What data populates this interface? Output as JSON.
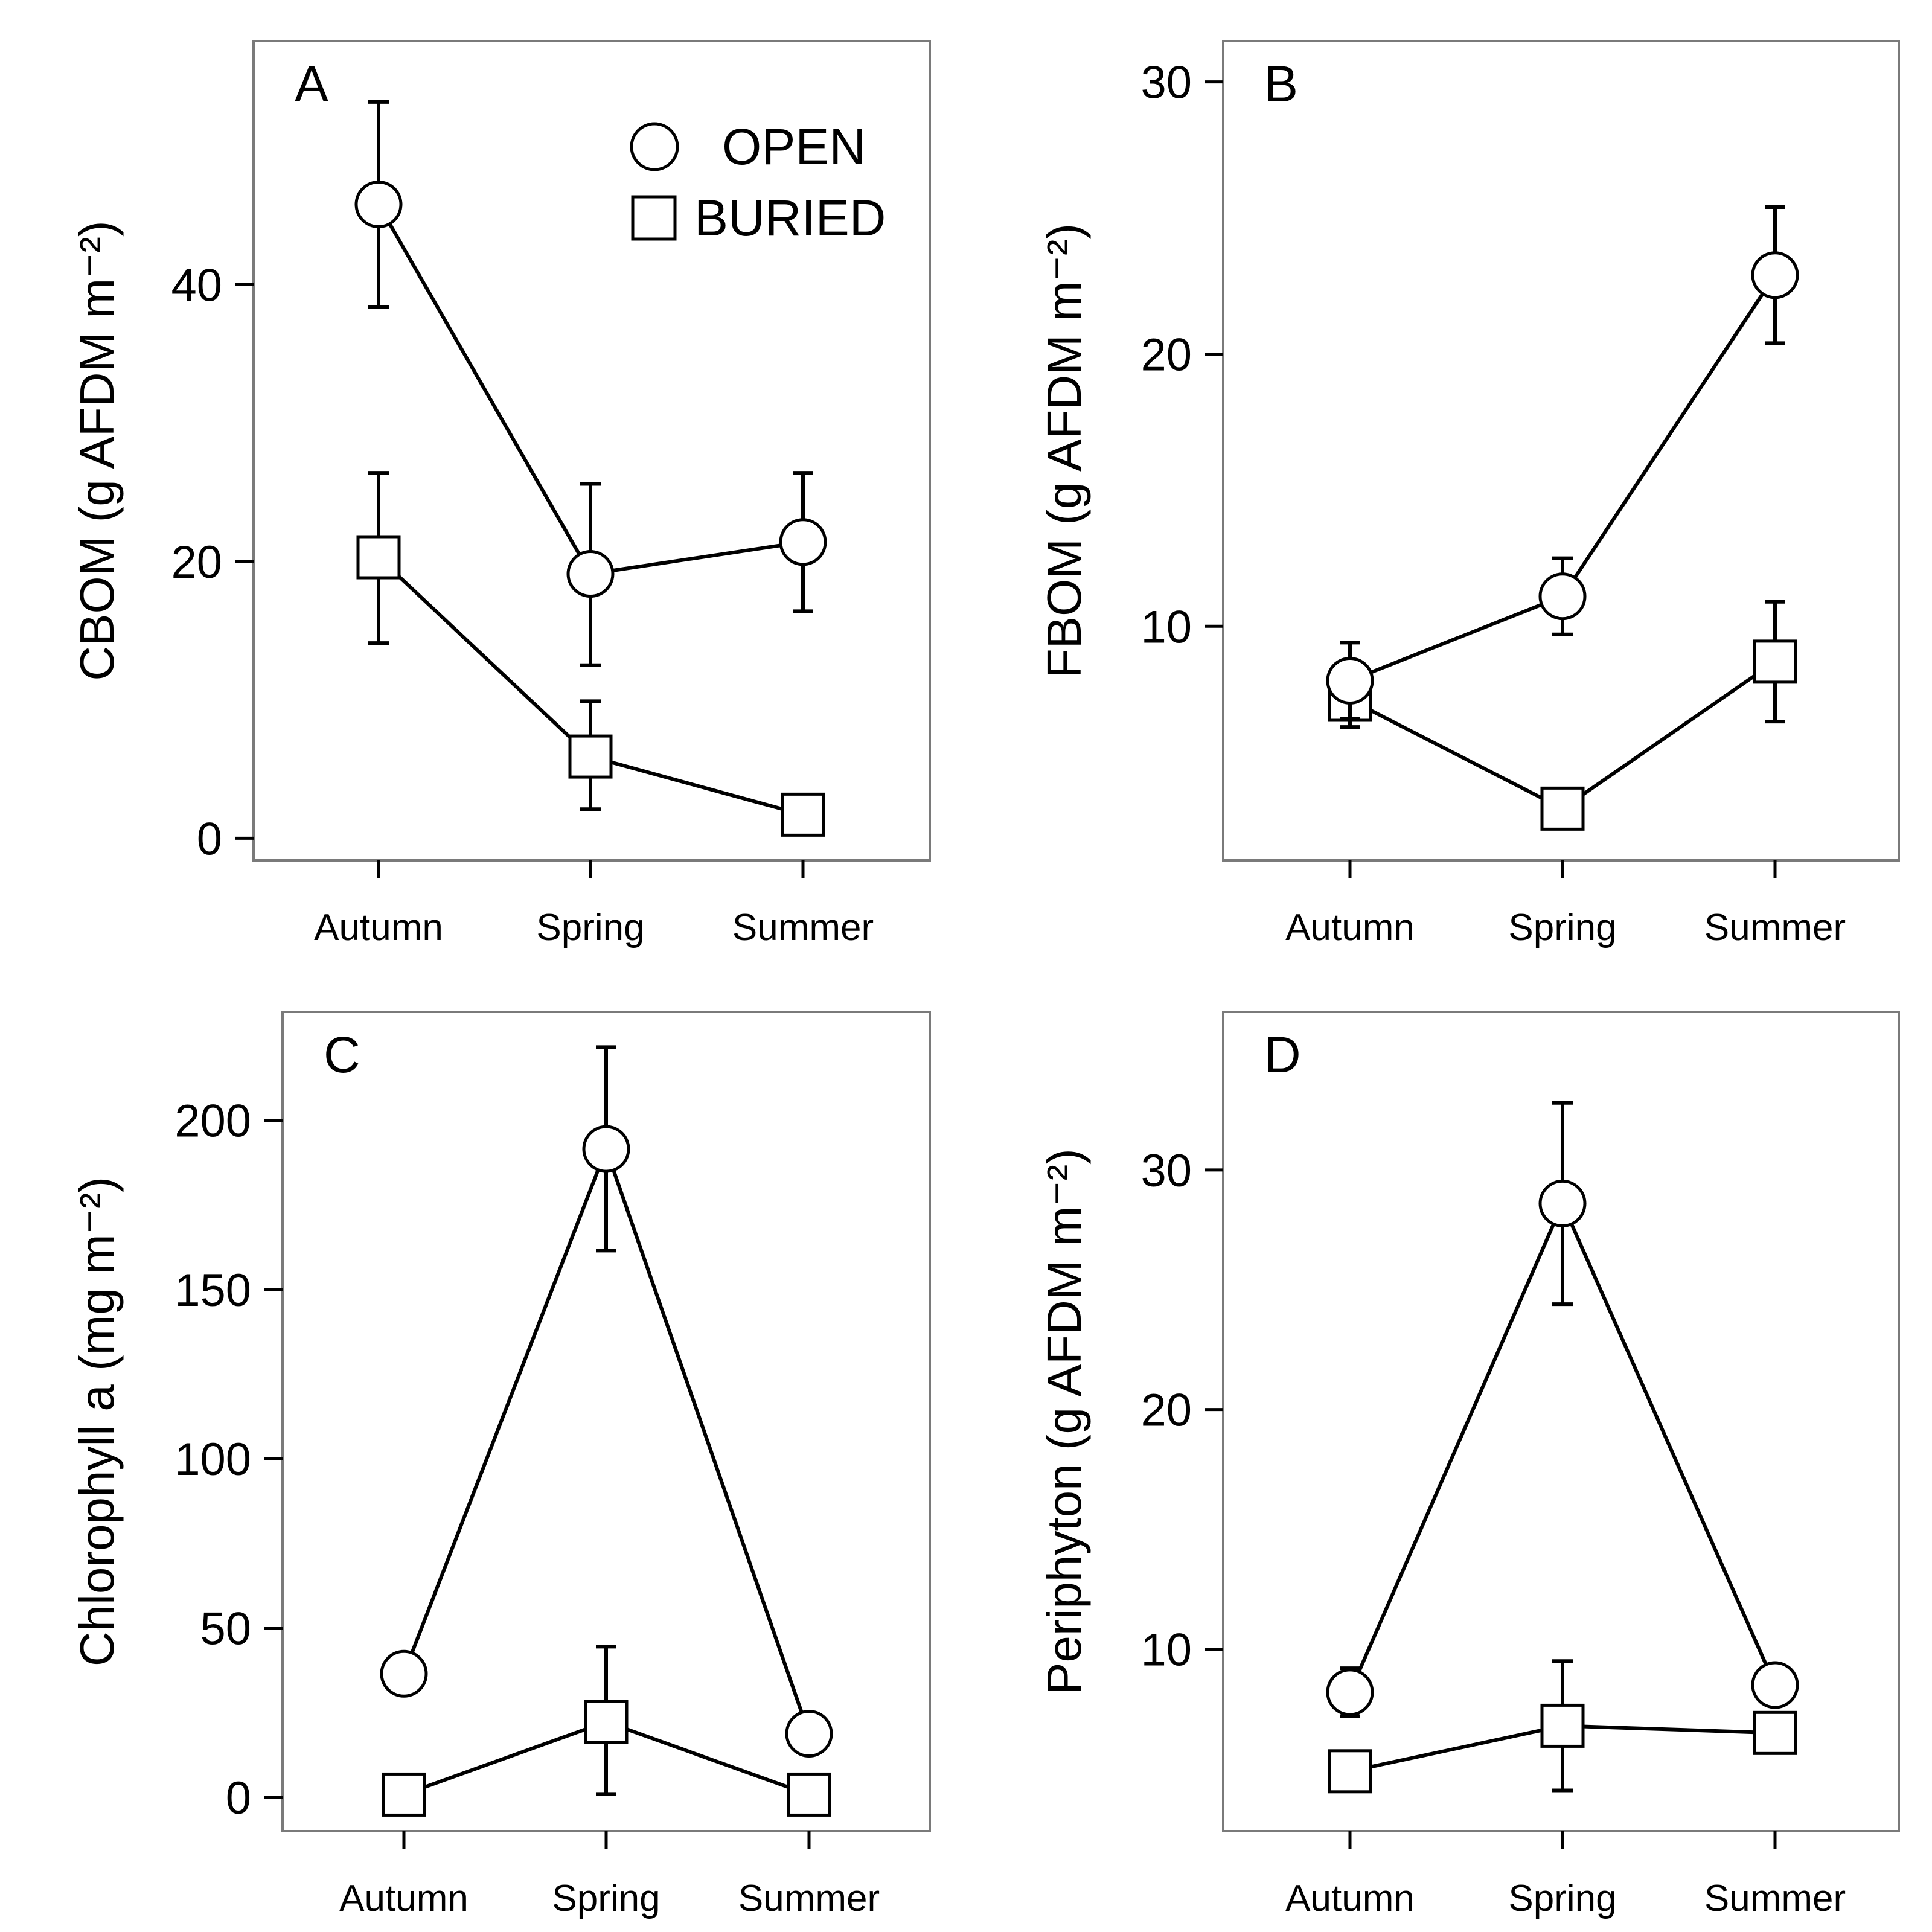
{
  "chart_data": [
    {
      "panel": "A",
      "type": "line",
      "categories": [
        "Autumn",
        "Spring",
        "Summer"
      ],
      "ylabel": "CBOM (g AFDM m⁻²)",
      "ylim": [
        -1.6,
        57.6
      ],
      "yticks": [
        0,
        20,
        40
      ],
      "series": [
        {
          "name": "OPEN",
          "marker": "circle",
          "values": [
            45.8,
            19.1,
            21.4
          ],
          "err_low": [
            38.4,
            12.5,
            16.4
          ],
          "err_high": [
            53.2,
            25.6,
            26.4
          ]
        },
        {
          "name": "BURIED",
          "marker": "square",
          "values": [
            20.3,
            5.9,
            1.7
          ],
          "err_low": [
            14.1,
            2.1,
            1.7
          ],
          "err_high": [
            26.4,
            9.9,
            1.7
          ]
        }
      ],
      "legend": {
        "position": "top-right",
        "entries": [
          "OPEN",
          "BURIED"
        ]
      }
    },
    {
      "panel": "B",
      "type": "line",
      "categories": [
        "Autumn",
        "Spring",
        "Summer"
      ],
      "ylabel": "FBOM (g AFDM m⁻²)",
      "ylim": [
        1.4,
        31.5
      ],
      "yticks": [
        10,
        20,
        30
      ],
      "series": [
        {
          "name": "OPEN",
          "marker": "circle",
          "values": [
            8.0,
            11.1,
            22.9
          ],
          "err_low": [
            6.6,
            9.7,
            20.4
          ],
          "err_high": [
            9.4,
            12.5,
            25.4
          ]
        },
        {
          "name": "BURIED",
          "marker": "square",
          "values": [
            7.3,
            3.3,
            8.7
          ],
          "err_low": [
            6.3,
            2.9,
            6.5
          ],
          "err_high": [
            8.3,
            3.8,
            10.9
          ]
        }
      ]
    },
    {
      "panel": "C",
      "type": "line",
      "categories": [
        "Autumn",
        "Spring",
        "Summer"
      ],
      "ylabel": "Chlorophyll a (mg m⁻²)",
      "ylim": [
        -10,
        232
      ],
      "yticks": [
        0,
        50,
        100,
        150,
        200
      ],
      "series": [
        {
          "name": "OPEN",
          "marker": "circle",
          "values": [
            36.5,
            191.5,
            18.8
          ],
          "err_low": [
            36.5,
            161.5,
            18.8
          ],
          "err_high": [
            36.5,
            221.6,
            18.8
          ]
        },
        {
          "name": "BURIED",
          "marker": "square",
          "values": [
            0.8,
            22.3,
            0.8
          ],
          "err_low": [
            0.8,
            1.0,
            0.8
          ],
          "err_high": [
            0.8,
            44.5,
            0.8
          ]
        }
      ]
    },
    {
      "panel": "D",
      "type": "line",
      "categories": [
        "Autumn",
        "Spring",
        "Summer"
      ],
      "ylabel": "Periphyton (g AFDM m⁻²)",
      "ylim": [
        2.4,
        36.6
      ],
      "yticks": [
        10,
        20,
        30
      ],
      "series": [
        {
          "name": "OPEN",
          "marker": "circle",
          "values": [
            8.2,
            28.6,
            8.5
          ],
          "err_low": [
            7.2,
            24.4,
            8.5
          ],
          "err_high": [
            9.2,
            32.8,
            8.5
          ]
        },
        {
          "name": "BURIED",
          "marker": "square",
          "values": [
            4.9,
            6.8,
            6.5
          ],
          "err_low": [
            4.9,
            4.1,
            6.0
          ],
          "err_high": [
            4.9,
            9.5,
            6.9
          ]
        }
      ]
    }
  ]
}
